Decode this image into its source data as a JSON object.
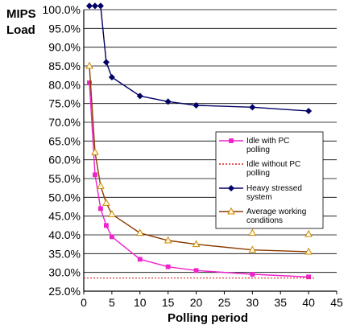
{
  "chart_data": {
    "type": "line",
    "title": "",
    "ylabel_line1": "MIPS",
    "ylabel_line2": "Load",
    "xlabel": "Polling  period",
    "xlim": [
      0,
      45
    ],
    "ylim": [
      25,
      100
    ],
    "x_ticks": [
      0,
      5,
      10,
      15,
      20,
      25,
      30,
      35,
      40,
      45
    ],
    "y_ticks": [
      25,
      30,
      35,
      40,
      45,
      50,
      55,
      60,
      65,
      70,
      75,
      80,
      85,
      90,
      95,
      100
    ],
    "y_tick_labels": [
      "25.0%",
      "30.0%",
      "35.0%",
      "40.0%",
      "45.0%",
      "50.0%",
      "55.0%",
      "60.0%",
      "65.0%",
      "70.0%",
      "75.0%",
      "80.0%",
      "85.0%",
      "90.0%",
      "95.0%",
      "100.0%"
    ],
    "grid": "horizontal",
    "legend_position": "right",
    "series": [
      {
        "name_lines": [
          "Idle  with  PC",
          "polling"
        ],
        "color": "#ee22cc",
        "marker": "square",
        "line_style": "solid",
        "x": [
          1,
          2,
          3,
          4,
          5,
          10,
          15,
          20,
          30,
          40
        ],
        "y": [
          80.5,
          56,
          47,
          42.5,
          39.5,
          33.5,
          31.5,
          30.5,
          29.5,
          28.8
        ]
      },
      {
        "name_lines": [
          "Idle  without PC",
          "polling"
        ],
        "color": "#dd2222",
        "marker": "none",
        "line_style": "dotted",
        "x": [
          0,
          41
        ],
        "y": [
          28.5,
          28.5
        ]
      },
      {
        "name_lines": [
          "Heavy stressed",
          "system"
        ],
        "color": "#000066",
        "marker": "diamond",
        "line_style": "solid",
        "x": [
          1,
          2,
          3,
          4,
          5,
          10,
          15,
          20,
          30,
          40
        ],
        "y": [
          101,
          101,
          101,
          86,
          82,
          77,
          75.5,
          74.5,
          74,
          73
        ]
      },
      {
        "name_lines": [
          "Average working",
          "conditions"
        ],
        "color": "#8b3a00",
        "marker": "triangle",
        "line_style": "solid",
        "marker_color": "#cc8800",
        "x": [
          1,
          2,
          3,
          4,
          5,
          10,
          15,
          20,
          30,
          40
        ],
        "y": [
          85,
          62,
          53,
          48.5,
          45.5,
          40.5,
          38.5,
          37.5,
          36,
          35.5
        ]
      }
    ],
    "extra_markers": [
      {
        "series": 3,
        "x": [
          30,
          40
        ],
        "y": [
          40.5,
          40.2
        ]
      }
    ]
  }
}
